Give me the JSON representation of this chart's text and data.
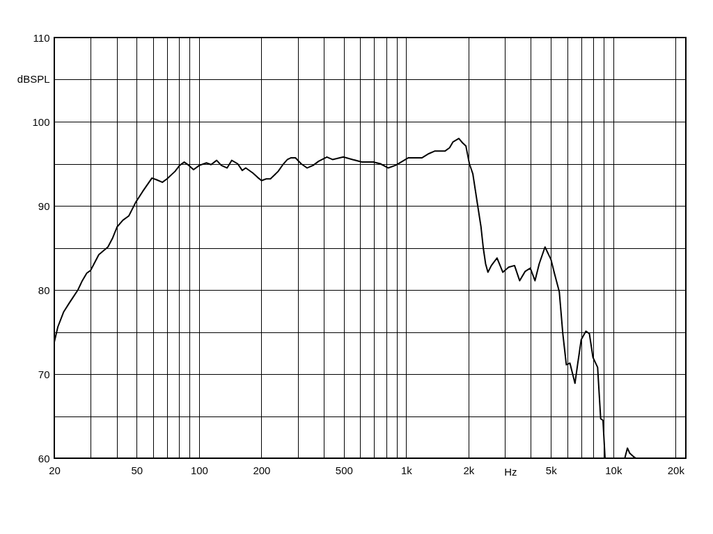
{
  "chart_data": {
    "type": "line",
    "xlabel": "Hz",
    "ylabel": "dBSPL",
    "log": "x",
    "grid": true,
    "xlim": [
      20,
      22400
    ],
    "ylim": [
      60,
      110
    ],
    "xticks": [
      20,
      {
        "value": 30,
        "label": null
      },
      {
        "value": 40,
        "label": null
      },
      50,
      {
        "value": 60,
        "label": null
      },
      {
        "value": 70,
        "label": null
      },
      {
        "value": 80,
        "label": null
      },
      {
        "value": 90,
        "label": null
      },
      100,
      200,
      {
        "value": 300,
        "label": null
      },
      {
        "value": 400,
        "label": null
      },
      500,
      {
        "value": 600,
        "label": null
      },
      {
        "value": 700,
        "label": null
      },
      {
        "value": 800,
        "label": null
      },
      {
        "value": 900,
        "label": null
      },
      {
        "value": 1000,
        "label": "1k"
      },
      {
        "value": 2000,
        "label": "2k"
      },
      {
        "value": 3000,
        "label": null
      },
      {
        "value": 4000,
        "label": null
      },
      {
        "value": 5000,
        "label": "5k"
      },
      {
        "value": 6000,
        "label": null
      },
      {
        "value": 7000,
        "label": null
      },
      {
        "value": 8000,
        "label": null
      },
      {
        "value": 9000,
        "label": null
      },
      {
        "value": 10000,
        "label": "10k"
      },
      {
        "value": 20000,
        "label": "20k"
      }
    ],
    "yticks": [
      60,
      {
        "value": 65,
        "label": null
      },
      70,
      {
        "value": 75,
        "label": null
      },
      80,
      {
        "value": 85,
        "label": null
      },
      90,
      {
        "value": 95,
        "label": null
      },
      100,
      {
        "value": 105,
        "label": null
      },
      110
    ],
    "series": [
      {
        "color": "#000000",
        "x": [
          20,
          20.8,
          22.2,
          23.7,
          24.6,
          26,
          27.3,
          28.7,
          29.9,
          32.8,
          36.3,
          38.3,
          40.2,
          42.9,
          45.8,
          49.4,
          53.4,
          59.2,
          62.3,
          66.5,
          70,
          76.6,
          80.5,
          84.8,
          89.3,
          94,
          100.3,
          108.5,
          114.2,
          121.6,
          128.1,
          136.6,
          143.7,
          153.6,
          161.6,
          168,
          181.7,
          191.3,
          200.2,
          211,
          221,
          232,
          241,
          254,
          267,
          277,
          292,
          311,
          332,
          355,
          378,
          414,
          441,
          459,
          497,
          551,
          611,
          694,
          750,
          820,
          886,
          945,
          1021,
          1075,
          1190,
          1286,
          1371,
          1538,
          1620,
          1683,
          1796,
          1868,
          1943,
          2019,
          2098,
          2209,
          2297,
          2356,
          2418,
          2481,
          2578,
          2746,
          2818,
          2929,
          3125,
          3335,
          3530,
          3752,
          3974,
          4186,
          4387,
          4680,
          5003,
          5206,
          5485,
          5705,
          5932,
          6174,
          6530,
          6730,
          7000,
          7375,
          7665,
          7973,
          8400,
          8690,
          8914,
          9125,
          11360,
          11700,
          12000,
          12500,
          12860
        ],
        "values": [
          73.8,
          75.6,
          77.4,
          78.5,
          79.1,
          80.0,
          81.1,
          82.0,
          82.3,
          84.2,
          85.1,
          86.2,
          87.5,
          88.3,
          88.8,
          90.4,
          91.7,
          93.3,
          93.1,
          92.8,
          93.2,
          94.1,
          94.8,
          95.2,
          94.8,
          94.3,
          94.8,
          95.1,
          94.9,
          95.4,
          94.8,
          94.5,
          95.4,
          95.0,
          94.2,
          94.5,
          93.9,
          93.4,
          93.0,
          93.2,
          93.2,
          93.7,
          94.1,
          94.9,
          95.5,
          95.7,
          95.7,
          95.0,
          94.5,
          94.8,
          95.3,
          95.8,
          95.5,
          95.6,
          95.8,
          95.5,
          95.2,
          95.2,
          95.0,
          94.5,
          94.8,
          95.2,
          95.7,
          95.7,
          95.7,
          96.2,
          96.5,
          96.5,
          96.9,
          97.6,
          98.0,
          97.5,
          97.1,
          95.0,
          93.8,
          90.2,
          87.5,
          85.0,
          83.1,
          82.1,
          82.9,
          83.8,
          83.1,
          82.1,
          82.7,
          82.9,
          81.1,
          82.2,
          82.6,
          81.1,
          83.1,
          85.1,
          83.6,
          81.9,
          79.8,
          74.8,
          71.1,
          71.3,
          68.9,
          71.2,
          74.1,
          75.1,
          74.8,
          72.0,
          70.8,
          64.7,
          64.5,
          60.0,
          60.0,
          61.2,
          60.6,
          60.2,
          60.0
        ]
      }
    ]
  }
}
